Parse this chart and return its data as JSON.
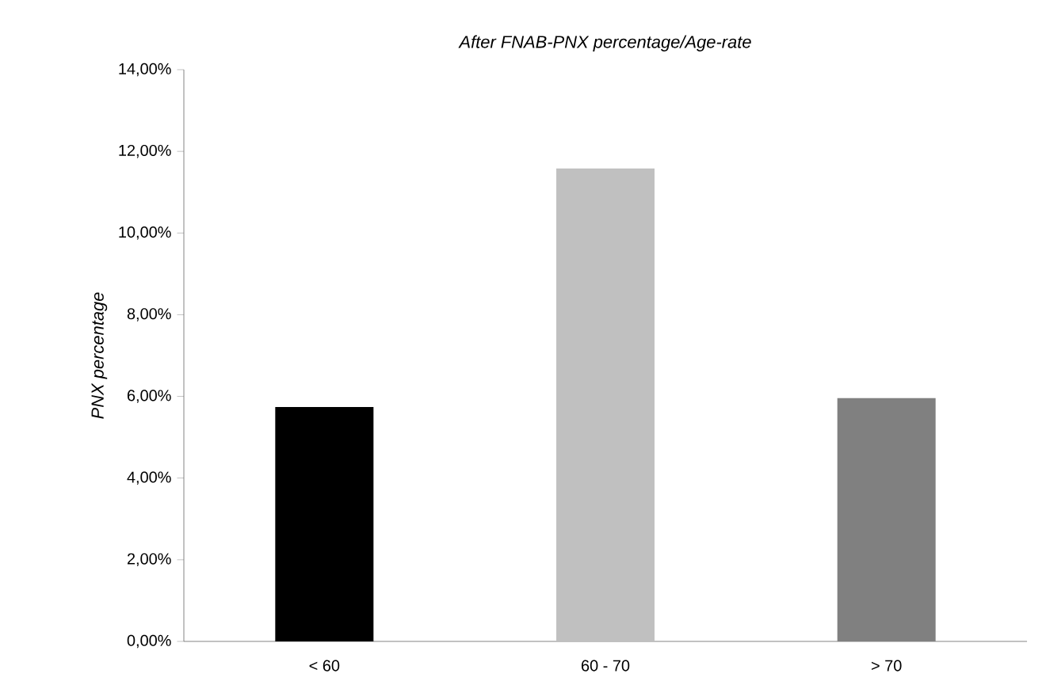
{
  "chart_data": {
    "type": "bar",
    "title": "After FNAB-PNX percentage/Age-rate",
    "ylabel": "PNX percentage",
    "categories": [
      "< 60",
      "60 - 70",
      "> 70"
    ],
    "values": [
      5.74,
      11.58,
      5.96
    ],
    "colors": [
      "#000000",
      "#c0c0c0",
      "#808080"
    ],
    "ylim": [
      0,
      14
    ],
    "yticks": [
      {
        "value": 0,
        "label": "0,00%"
      },
      {
        "value": 2,
        "label": "2,00%"
      },
      {
        "value": 4,
        "label": "4,00%"
      },
      {
        "value": 6,
        "label": "6,00%"
      },
      {
        "value": 8,
        "label": "8,00%"
      },
      {
        "value": 10,
        "label": "10,00%"
      },
      {
        "value": 12,
        "label": "12,00%"
      },
      {
        "value": 14,
        "label": "14,00%"
      }
    ],
    "grid": false
  }
}
